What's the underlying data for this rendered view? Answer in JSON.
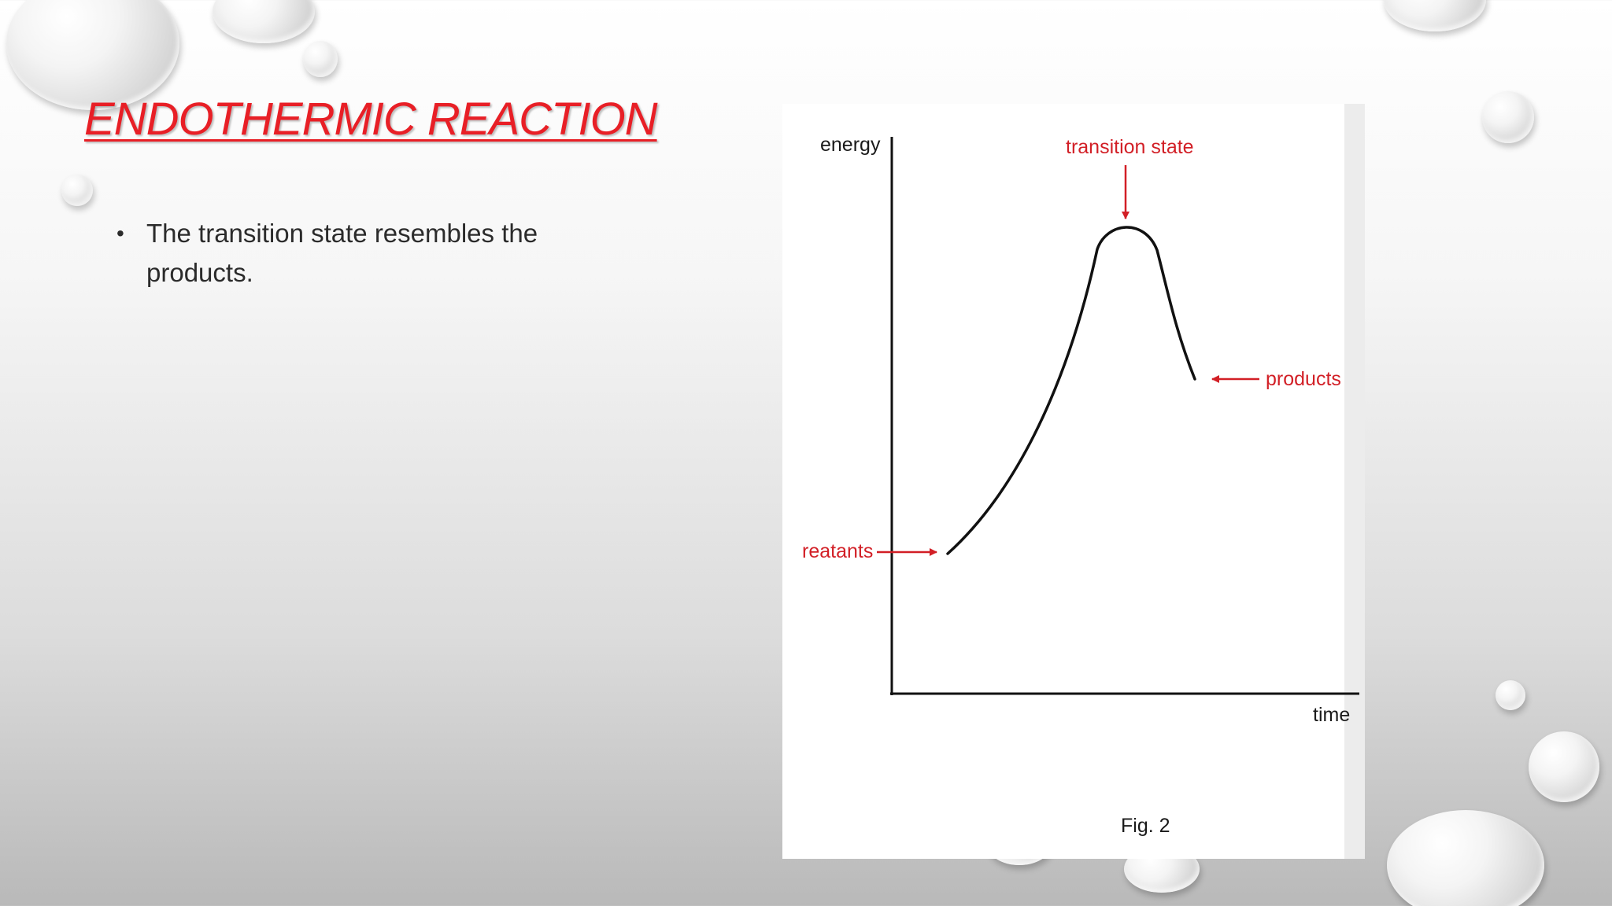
{
  "slide": {
    "title": "ENDOTHERMIC REACTION",
    "bullets": [
      "The transition state resembles the products."
    ]
  },
  "figure": {
    "y_axis_label": "energy",
    "x_axis_label": "time",
    "caption": "Fig. 2",
    "annotations": {
      "peak": "transition state",
      "start": "reatants",
      "end": "products"
    }
  },
  "colors": {
    "title": "#e81f26",
    "annotation": "#d21f26",
    "curve": "#111111"
  }
}
